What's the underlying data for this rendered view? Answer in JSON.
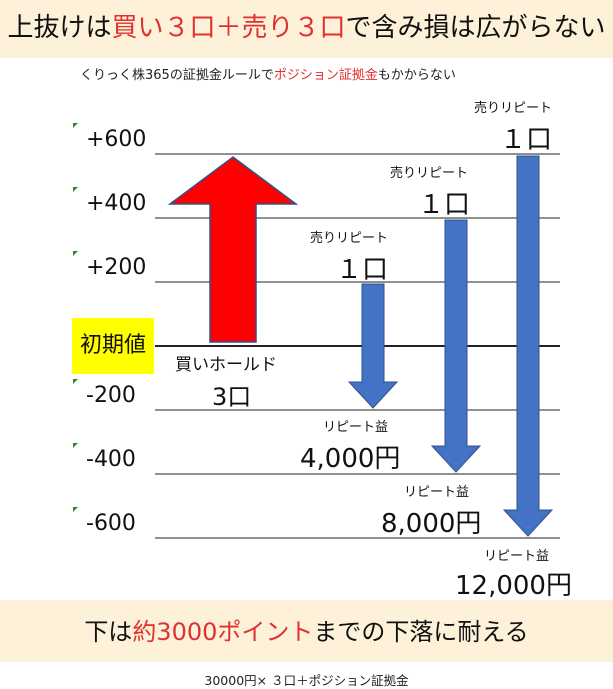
{
  "header": {
    "title_part1": "上抜けは",
    "title_red1": "買い３口＋売り３口",
    "title_part2": "で含み損は広がらない"
  },
  "subtitle": {
    "part1": "くりっく株365の証拠金ルールで",
    "red": "ポジション証拠金",
    "part2": "もかからない"
  },
  "levels": [
    "+600",
    "+400",
    "+200",
    "初期値",
    "-200",
    "-400",
    "-600"
  ],
  "colors": {
    "accent_red": "#e0312f",
    "buy_arrow": "#ff0000",
    "sell_arrow": "#4472c4",
    "highlight": "#ffff00",
    "band": "#fdf2d9"
  },
  "buy": {
    "label": "買いホールド",
    "qty": "3口"
  },
  "sells": [
    {
      "label": "売りリピート",
      "qty": "１口",
      "profit_label": "リピート益",
      "profit": "4,000円"
    },
    {
      "label": "売りリピート",
      "qty": "１口",
      "profit_label": "リピート益",
      "profit": "8,000円"
    },
    {
      "label": "売りリピート",
      "qty": "１口",
      "profit_label": "リピート益",
      "profit": "12,000円"
    }
  ],
  "bottom": {
    "part1": "下は",
    "red": "約3000ポイント",
    "part2": "までの下落に耐える"
  },
  "footer": "30000円× ３口＋ポジション証拠金"
}
